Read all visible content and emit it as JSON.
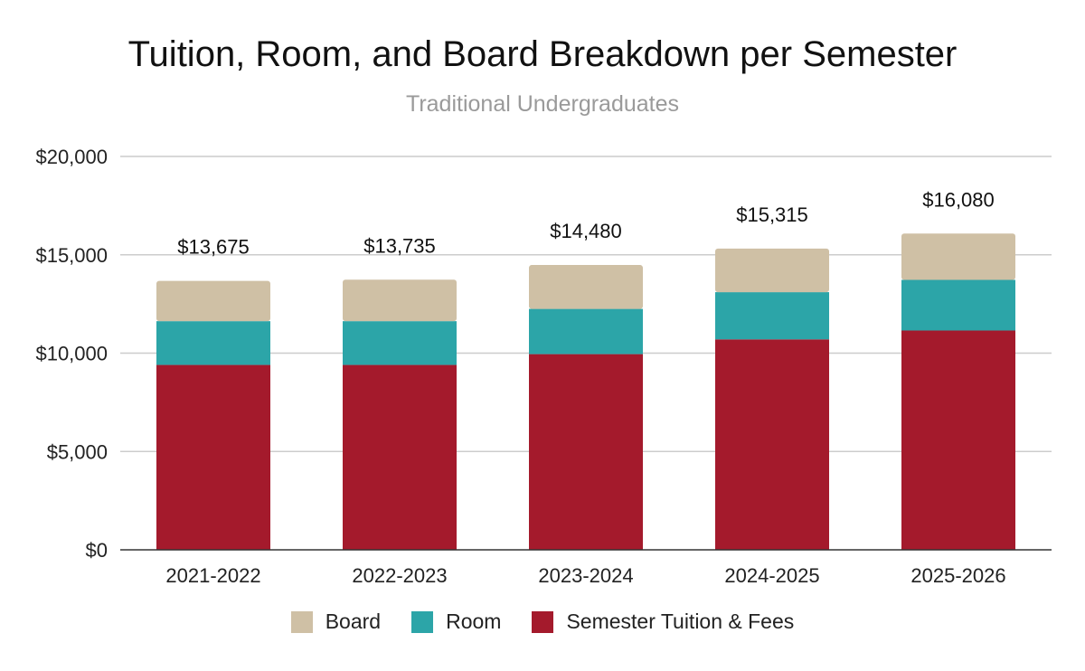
{
  "chart_data": {
    "type": "bar",
    "stacked": true,
    "title": "Tuition, Room, and Board Breakdown per Semester",
    "subtitle": "Traditional Undergraduates",
    "xlabel": "",
    "ylabel": "",
    "ylim": [
      0,
      20000
    ],
    "y_ticks": [
      0,
      5000,
      10000,
      15000,
      20000
    ],
    "y_tick_labels": [
      "$0",
      "$5,000",
      "$10,000",
      "$15,000",
      "$20,000"
    ],
    "grid": true,
    "legend_position": "bottom",
    "categories": [
      "2021-2022",
      "2022-2023",
      "2023-2024",
      "2024-2025",
      "2025-2026"
    ],
    "series": [
      {
        "name": "Semester Tuition & Fees",
        "color": "#a41a2c",
        "values": [
          9400,
          9400,
          9950,
          10700,
          11150
        ]
      },
      {
        "name": "Room",
        "color": "#2ca5a8",
        "values": [
          2225,
          2225,
          2300,
          2400,
          2575
        ]
      },
      {
        "name": "Board",
        "color": "#cfc0a5",
        "values": [
          2050,
          2110,
          2230,
          2215,
          2355
        ]
      }
    ],
    "totals": [
      13675,
      13735,
      14480,
      15315,
      16080
    ],
    "total_labels": [
      "$13,675",
      "$13,735",
      "$14,480",
      "$15,315",
      "$16,080"
    ],
    "legend_order": [
      "Board",
      "Room",
      "Semester Tuition & Fees"
    ]
  }
}
